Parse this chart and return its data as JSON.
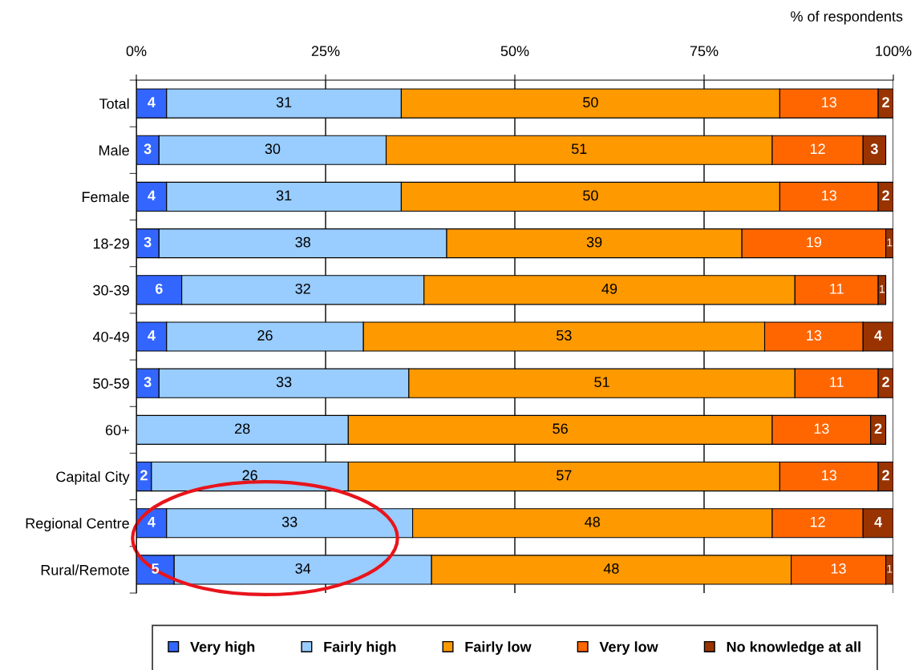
{
  "chart_data": {
    "type": "bar",
    "orientation": "horizontal",
    "stacked": true,
    "xlabel": "% of respondents",
    "categories": [
      "Total",
      "Male",
      "Female",
      "18-29",
      "30-39",
      "40-49",
      "50-59",
      "60+",
      "Capital City",
      "Regional Centre",
      "Rural/Remote"
    ],
    "series": [
      {
        "name": "Very high",
        "color": "#3366ff",
        "values": [
          4,
          3,
          4,
          3,
          6,
          4,
          3,
          0,
          2,
          4,
          5
        ],
        "value_labels": [
          "4",
          "3",
          "4",
          "3",
          "6",
          "4",
          "3",
          null,
          "2",
          "4",
          "5"
        ]
      },
      {
        "name": "Fairly high",
        "color": "#99ccff",
        "values": [
          31,
          30,
          31,
          38,
          32,
          26,
          33,
          28,
          26,
          32.5,
          34
        ],
        "value_labels": [
          "31",
          "30",
          "31",
          "38",
          "32",
          "26",
          "33",
          "28",
          "26",
          "33",
          "34"
        ]
      },
      {
        "name": "Fairly low",
        "color": "#ff9900",
        "values": [
          50,
          51,
          50,
          39,
          49,
          53,
          51,
          56,
          57,
          47.5,
          47.5
        ],
        "value_labels": [
          "50",
          "51",
          "50",
          "39",
          "49",
          "53",
          "51",
          "56",
          "57",
          "48",
          "48"
        ]
      },
      {
        "name": "Very low",
        "color": "#ff6600",
        "values": [
          13,
          12,
          13,
          19,
          11,
          13,
          11,
          13,
          13,
          12,
          12.5
        ],
        "value_labels": [
          "13",
          "12",
          "13",
          "19",
          "11",
          "13",
          "11",
          "13",
          "13",
          "12",
          "13"
        ]
      },
      {
        "name": "No knowledge at all",
        "color": "#993300",
        "values": [
          2,
          3,
          2,
          1,
          1,
          4,
          2,
          2,
          2,
          4,
          1
        ],
        "value_labels": [
          "2",
          "3",
          "2",
          "1",
          "1",
          "4",
          "2",
          "2",
          "2",
          "4",
          "1"
        ]
      }
    ],
    "xlim": [
      0,
      100
    ],
    "xticks": [
      {
        "value": 0,
        "label": "0%"
      },
      {
        "value": 25,
        "label": "25%"
      },
      {
        "value": 50,
        "label": "50%"
      },
      {
        "value": 75,
        "label": "75%"
      },
      {
        "value": 100,
        "label": "100%"
      }
    ],
    "grid": "x",
    "legend": "bottom"
  }
}
